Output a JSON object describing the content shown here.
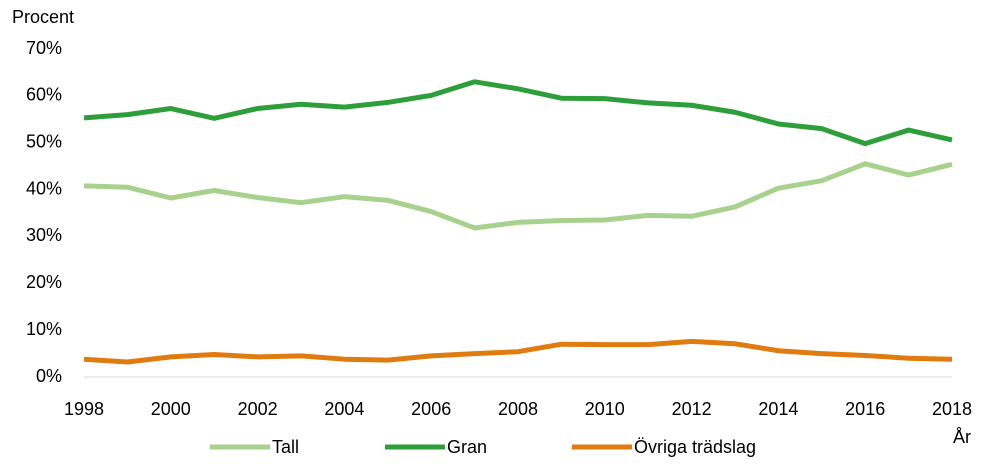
{
  "chart_data": {
    "type": "line",
    "y_label": "Procent",
    "x_label": "År",
    "x": [
      1998,
      1999,
      2000,
      2001,
      2002,
      2003,
      2004,
      2005,
      2006,
      2007,
      2008,
      2009,
      2010,
      2011,
      2012,
      2013,
      2014,
      2015,
      2016,
      2017,
      2018
    ],
    "series": [
      {
        "name": "Tall",
        "color": "#a9d18e",
        "values": [
          40.8,
          40.5,
          38.2,
          39.8,
          38.3,
          37.2,
          38.5,
          37.7,
          35.3,
          31.8,
          33.0,
          33.4,
          33.5,
          34.5,
          34.3,
          36.3,
          40.3,
          41.9,
          45.5,
          43.1,
          45.4
        ]
      },
      {
        "name": "Gran",
        "color": "#2e9e3a",
        "values": [
          55.3,
          56.0,
          57.3,
          55.2,
          57.3,
          58.2,
          57.6,
          58.6,
          60.1,
          63.0,
          61.5,
          59.5,
          59.4,
          58.5,
          58.0,
          56.5,
          54.0,
          53.0,
          49.8,
          52.7,
          50.6
        ]
      },
      {
        "name": "Övriga trädslag",
        "color": "#e07b10",
        "values": [
          3.8,
          3.2,
          4.3,
          4.8,
          4.3,
          4.5,
          3.8,
          3.6,
          4.5,
          5.0,
          5.4,
          7.0,
          6.9,
          6.9,
          7.6,
          7.1,
          5.6,
          5.0,
          4.6,
          4.0,
          3.8
        ]
      }
    ],
    "xlim": [
      1998,
      2018
    ],
    "xticks": [
      1998,
      2000,
      2002,
      2004,
      2006,
      2008,
      2010,
      2012,
      2014,
      2016,
      2018
    ],
    "ylim": [
      0,
      70
    ],
    "yticks": [
      {
        "value": 0,
        "label": "0%"
      },
      {
        "value": 10,
        "label": "10%"
      },
      {
        "value": 20,
        "label": "20%"
      },
      {
        "value": 30,
        "label": "30%"
      },
      {
        "value": 40,
        "label": "40%"
      },
      {
        "value": 50,
        "label": "50%"
      },
      {
        "value": 60,
        "label": "60%"
      },
      {
        "value": 70,
        "label": "70%"
      }
    ],
    "grid": false,
    "legend": "bottom"
  }
}
